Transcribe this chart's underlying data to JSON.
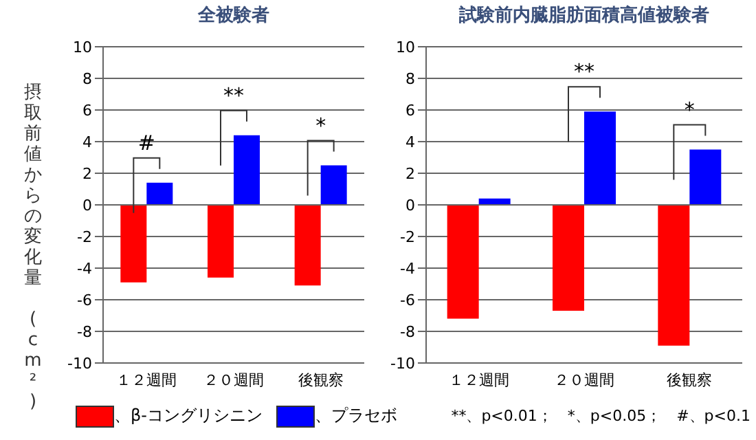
{
  "chart_data": [
    {
      "type": "bar",
      "title": "全被験者",
      "ylabel": "摂取前値からの変化量 (cm²)",
      "categories": [
        "１２週間",
        "２０週間",
        "後観察"
      ],
      "series": [
        {
          "name": "、β-コングリシニン",
          "color": "#ff0000",
          "values": [
            -4.9,
            -4.6,
            -5.1
          ]
        },
        {
          "name": "、プラセボ",
          "color": "#0000ff",
          "values": [
            1.4,
            4.4,
            2.5
          ]
        }
      ],
      "ylim": [
        -10,
        10
      ],
      "yticks": [
        -10,
        -8,
        -6,
        -4,
        -2,
        0,
        2,
        4,
        6,
        8,
        10
      ],
      "grid": "y",
      "legend": "bottom",
      "annotations": [
        "#",
        "**",
        "*"
      ]
    },
    {
      "type": "bar",
      "title": "試験前内臓脂肪面積高値被験者",
      "categories": [
        "１２週間",
        "２０週間",
        "後観察"
      ],
      "series": [
        {
          "color": "#ff0000",
          "values": [
            -7.2,
            -6.7,
            -8.9
          ]
        },
        {
          "color": "#0000ff",
          "values": [
            0.4,
            5.9,
            3.5
          ]
        }
      ],
      "ylim": [
        -10,
        10
      ],
      "yticks": [
        -10,
        -8,
        -6,
        -4,
        -2,
        0,
        2,
        4,
        6,
        8,
        10
      ],
      "grid": "y",
      "annotations": [
        "**",
        "*",
        "**、p<0.01；　*、p<0.05；　#、p<0.1"
      ]
    }
  ]
}
